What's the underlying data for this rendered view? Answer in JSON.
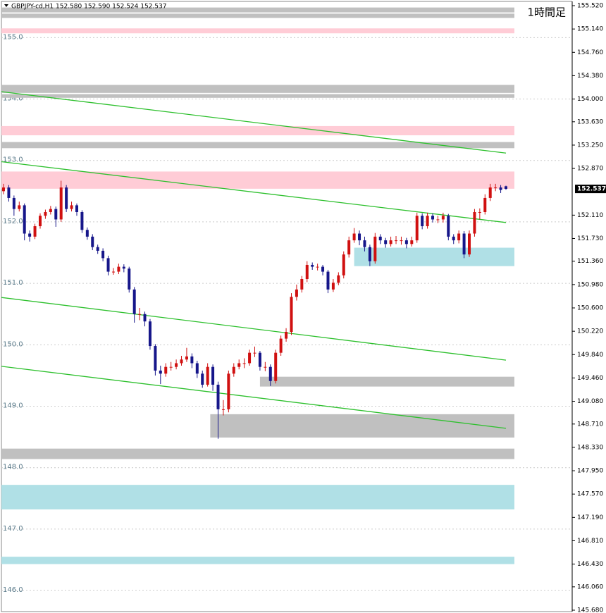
{
  "chart_data": {
    "type": "candlestick",
    "title": "1時間足",
    "info": "GBPJPY-cd,H1  152.580 152.590 152.524 152.537",
    "ylim": [
      145.657,
      155.589
    ],
    "yticks": [
      {
        "value": 155.52,
        "label": "155.520"
      },
      {
        "value": 155.14,
        "label": "155.140"
      },
      {
        "value": 154.76,
        "label": "154.760"
      },
      {
        "value": 154.38,
        "label": "154.380"
      },
      {
        "value": 154.0,
        "label": "154.000"
      },
      {
        "value": 153.63,
        "label": "153.630"
      },
      {
        "value": 153.25,
        "label": "153.250"
      },
      {
        "value": 152.87,
        "label": "152.870"
      },
      {
        "value": 152.11,
        "label": "152.110"
      },
      {
        "value": 151.73,
        "label": "151.730"
      },
      {
        "value": 151.36,
        "label": "151.360"
      },
      {
        "value": 150.98,
        "label": "150.980"
      },
      {
        "value": 150.6,
        "label": "150.600"
      },
      {
        "value": 150.22,
        "label": "150.220"
      },
      {
        "value": 149.84,
        "label": "149.840"
      },
      {
        "value": 149.46,
        "label": "149.460"
      },
      {
        "value": 149.08,
        "label": "149.080"
      },
      {
        "value": 148.71,
        "label": "148.710"
      },
      {
        "value": 148.33,
        "label": "148.330"
      },
      {
        "value": 147.95,
        "label": "147.950"
      },
      {
        "value": 147.57,
        "label": "147.570"
      },
      {
        "value": 147.19,
        "label": "147.190"
      },
      {
        "value": 146.81,
        "label": "146.810"
      },
      {
        "value": 146.43,
        "label": "146.430"
      },
      {
        "value": 146.06,
        "label": "146.060"
      },
      {
        "value": 145.68,
        "label": "145.680"
      }
    ],
    "levels": [
      {
        "value": 155,
        "label": "155.0"
      },
      {
        "value": 154,
        "label": "154.0"
      },
      {
        "value": 153,
        "label": "153.0"
      },
      {
        "value": 152,
        "label": "152.0"
      },
      {
        "value": 151,
        "label": "151.0"
      },
      {
        "value": 150,
        "label": "150.0"
      },
      {
        "value": 149,
        "label": "149.0"
      },
      {
        "value": 148,
        "label": "148.0"
      },
      {
        "value": 147,
        "label": "147.0"
      },
      {
        "value": 146,
        "label": "146.0"
      }
    ],
    "current_price": {
      "value": 152.537,
      "label": "152.537"
    },
    "up_color": "#d01010",
    "down_color": "#16168a",
    "open": [
      152.5,
      152.56,
      152.39,
      152.21,
      152.27,
      151.81,
      151.76,
      151.93,
      152.1,
      152.16,
      152.21,
      152.04,
      152.56,
      152.21,
      152.27,
      152.16,
      151.87,
      151.76,
      151.59,
      151.53,
      151.41,
      151.19,
      151.19,
      151.27,
      151.24,
      150.9,
      150.5,
      150.5,
      150.38,
      149.98,
      149.58,
      149.53,
      149.64,
      149.64,
      149.7,
      149.76,
      149.81,
      149.7,
      149.53,
      149.35,
      149.64,
      149.35,
      148.95,
      148.95,
      149.53,
      149.64,
      149.7,
      149.7,
      149.87,
      149.87,
      149.64,
      149.64,
      149.41,
      149.87,
      150.1,
      150.21,
      150.78,
      150.9,
      151.07,
      151.3,
      151.27,
      151.27,
      151.19,
      150.9,
      151.01,
      151.13,
      151.47,
      151.7,
      151.81,
      151.7,
      151.59,
      151.36,
      151.76,
      151.7,
      151.64,
      151.7,
      151.7,
      151.7,
      151.64,
      151.7,
      152.1,
      151.93,
      152.1,
      152.04,
      152.04,
      152.1,
      151.76,
      151.7,
      151.81,
      151.47,
      151.81,
      152.16,
      152.16,
      152.39,
      152.56,
      152.56,
      152.58
    ],
    "high": [
      152.62,
      152.6,
      152.43,
      152.33,
      152.3,
      151.86,
      151.97,
      152.14,
      152.2,
      152.26,
      152.25,
      152.67,
      152.6,
      152.33,
      152.3,
      152.19,
      151.91,
      151.8,
      151.63,
      151.57,
      151.45,
      151.25,
      151.32,
      151.31,
      151.27,
      150.94,
      150.6,
      150.54,
      150.42,
      150.01,
      149.66,
      149.7,
      149.72,
      149.76,
      149.82,
      149.95,
      149.86,
      149.74,
      149.58,
      149.7,
      149.68,
      149.4,
      149.1,
      149.58,
      149.7,
      149.76,
      149.78,
      149.92,
      149.97,
      149.9,
      149.72,
      149.68,
      149.92,
      150.15,
      150.27,
      150.84,
      150.98,
      151.12,
      151.36,
      151.34,
      151.32,
      151.3,
      151.22,
      151.07,
      151.18,
      151.52,
      151.76,
      151.9,
      151.86,
      151.76,
      151.63,
      151.82,
      151.8,
      151.74,
      151.76,
      151.77,
      151.76,
      151.74,
      151.76,
      152.15,
      152.14,
      152.15,
      152.14,
      152.1,
      152.15,
      152.13,
      151.8,
      151.86,
      151.85,
      151.86,
      152.21,
      152.22,
      152.45,
      152.62,
      152.62,
      152.6,
      152.59
    ],
    "low": [
      152.45,
      152.33,
      152.1,
      152.17,
      151.7,
      151.68,
      151.72,
      151.89,
      152.05,
      152.12,
      151.92,
      152.0,
      152.16,
      152.17,
      152.1,
      151.82,
      151.71,
      151.54,
      151.48,
      151.36,
      151.13,
      151.14,
      151.15,
      151.18,
      150.85,
      150.36,
      150.4,
      150.3,
      149.92,
      149.5,
      149.36,
      149.48,
      149.58,
      149.6,
      149.66,
      149.72,
      149.62,
      149.46,
      149.3,
      149.32,
      149.25,
      148.47,
      148.85,
      148.9,
      149.48,
      149.6,
      149.62,
      149.66,
      149.8,
      149.58,
      149.57,
      149.33,
      149.37,
      149.82,
      150.05,
      150.16,
      150.72,
      150.85,
      151.02,
      151.22,
      151.21,
      151.13,
      150.84,
      150.86,
      150.97,
      151.08,
      151.42,
      151.66,
      151.62,
      151.52,
      151.28,
      151.32,
      151.64,
      151.58,
      151.6,
      151.64,
      151.63,
      151.57,
      151.6,
      151.66,
      151.88,
      151.89,
      151.99,
      151.98,
      151.99,
      151.7,
      151.64,
      151.65,
      151.41,
      151.43,
      151.76,
      152.04,
      152.12,
      152.34,
      152.5,
      152.47,
      152.524
    ],
    "close": [
      152.56,
      152.39,
      152.21,
      152.27,
      151.81,
      151.76,
      151.93,
      152.1,
      152.16,
      152.21,
      152.04,
      152.56,
      152.21,
      152.27,
      152.16,
      151.87,
      151.76,
      151.59,
      151.53,
      151.41,
      151.19,
      151.19,
      151.27,
      151.24,
      150.9,
      150.5,
      150.5,
      150.38,
      149.98,
      149.58,
      149.53,
      149.64,
      149.64,
      149.7,
      149.76,
      149.81,
      149.7,
      149.53,
      149.35,
      149.64,
      149.35,
      148.95,
      148.95,
      149.53,
      149.64,
      149.7,
      149.7,
      149.87,
      149.87,
      149.64,
      149.64,
      149.41,
      149.87,
      150.1,
      150.21,
      150.78,
      150.9,
      151.07,
      151.3,
      151.27,
      151.27,
      151.19,
      150.9,
      151.01,
      151.13,
      151.47,
      151.7,
      151.81,
      151.7,
      151.59,
      151.36,
      151.76,
      151.7,
      151.64,
      151.7,
      151.7,
      151.7,
      151.64,
      151.7,
      152.1,
      151.93,
      152.1,
      152.04,
      152.04,
      152.1,
      151.76,
      151.7,
      151.81,
      151.47,
      151.81,
      152.16,
      152.16,
      152.39,
      152.56,
      152.56,
      152.52,
      152.537
    ],
    "zones": [
      {
        "from": 155.49,
        "to": 155.41,
        "start": 0,
        "color": "#c0c0c0"
      },
      {
        "from": 155.39,
        "to": 155.32,
        "start": 0,
        "color": "#c0c0c0"
      },
      {
        "from": 155.15,
        "to": 155.07,
        "start": 0,
        "color": "#ffccd6"
      },
      {
        "from": 154.23,
        "to": 154.1,
        "start": 0,
        "color": "#c0c0c0"
      },
      {
        "from": 154.08,
        "to": 154.02,
        "start": 0,
        "color": "#c0c0c0"
      },
      {
        "from": 153.56,
        "to": 153.41,
        "start": 0,
        "color": "#ffccd6"
      },
      {
        "from": 153.3,
        "to": 153.2,
        "start": 0,
        "color": "#c0c0c0"
      },
      {
        "from": 152.82,
        "to": 152.54,
        "start": 0,
        "color": "#ffccd6"
      },
      {
        "from": 151.58,
        "to": 151.28,
        "start": 67,
        "color": "#b0e0e6"
      },
      {
        "from": 149.48,
        "to": 149.32,
        "start": 49,
        "color": "#c0c0c0"
      },
      {
        "from": 148.87,
        "to": 148.49,
        "start": 39.5,
        "color": "#c0c0c0"
      },
      {
        "from": 148.31,
        "to": 148.14,
        "start": 0,
        "color": "#c0c0c0"
      },
      {
        "from": 147.72,
        "to": 147.32,
        "start": 0,
        "color": "#b0e0e6"
      },
      {
        "from": 146.55,
        "to": 146.43,
        "start": 0,
        "color": "#b0e0e6"
      }
    ],
    "trendlines": [
      {
        "from": {
          "x": -0.67,
          "y": 154.12
        },
        "to": {
          "x": 96,
          "y": 153.12
        }
      },
      {
        "from": {
          "x": -0.67,
          "y": 152.98
        },
        "to": {
          "x": 96,
          "y": 151.99
        }
      },
      {
        "from": {
          "x": -0.67,
          "y": 150.77
        },
        "to": {
          "x": 96,
          "y": 149.75
        }
      },
      {
        "from": {
          "x": -0.67,
          "y": 149.65
        },
        "to": {
          "x": 96,
          "y": 148.64
        }
      }
    ],
    "trendline_color": "#2ec02e"
  }
}
